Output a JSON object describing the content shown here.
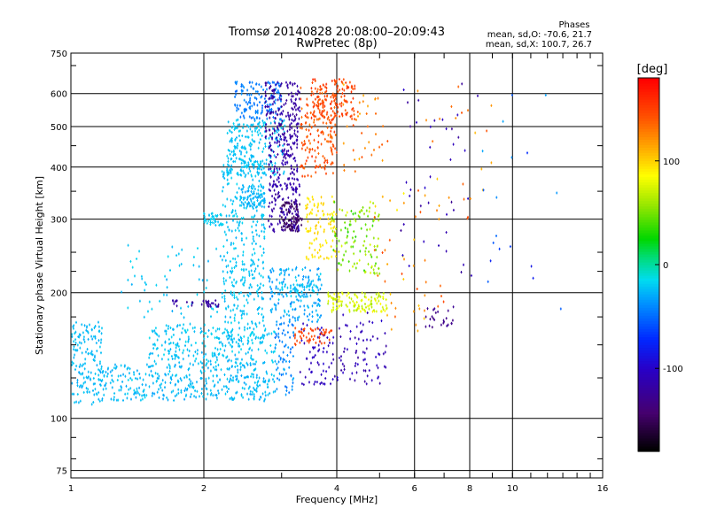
{
  "title": {
    "line1": "Tromsø 20140828 20:08:00–20:09:43",
    "line2": "RwPretec (8p)"
  },
  "stats": {
    "heading": "Phases",
    "o_mode": "mean, sd,O: -70.6, 21.7",
    "x_mode": "mean, sd,X: 100.7, 26.7"
  },
  "colorbar": {
    "label": "[deg]",
    "ticks": [
      "100",
      "0",
      "-100"
    ],
    "tick_values": [
      100,
      0,
      -100
    ],
    "range": [
      -180,
      180
    ]
  },
  "chart_data": {
    "type": "scatter",
    "x_scale": "log",
    "y_scale": "log",
    "xlabel": "Frequency [MHz]",
    "ylabel": "Stationary phase Virtual Height [km]",
    "xlim": [
      1,
      16
    ],
    "ylim": [
      72,
      750
    ],
    "x_ticks": [
      "1",
      "2",
      "4",
      "6",
      "8",
      "10",
      "16"
    ],
    "x_tick_values": [
      1,
      2,
      4,
      6,
      8,
      10,
      16
    ],
    "y_ticks": [
      "75",
      "100",
      "200",
      "300",
      "400",
      "500",
      "600",
      "750"
    ],
    "y_tick_values": [
      75,
      100,
      200,
      300,
      400,
      500,
      600,
      750
    ],
    "grid": true,
    "color_dimension": "phase (deg)",
    "clusters": [
      {
        "f": [
          1.0,
          1.18
        ],
        "h": [
          108,
          170
        ],
        "phase": -25,
        "n": 150,
        "spread": 8
      },
      {
        "f": [
          1.15,
          2.9
        ],
        "h": [
          110,
          135
        ],
        "phase": -25,
        "n": 380,
        "spread": 10
      },
      {
        "f": [
          1.5,
          2.9
        ],
        "h": [
          135,
          165
        ],
        "phase": -22,
        "n": 230,
        "spread": 10
      },
      {
        "f": [
          1.3,
          2.2
        ],
        "h": [
          160,
          260
        ],
        "phase": -22,
        "n": 70,
        "spread": 10
      },
      {
        "f": [
          1.7,
          2.2
        ],
        "h": [
          185,
          192
        ],
        "phase": -118,
        "n": 30,
        "spread": 8
      },
      {
        "f": [
          2.0,
          2.2
        ],
        "h": [
          290,
          310
        ],
        "phase": -20,
        "n": 40,
        "spread": 6
      },
      {
        "f": [
          2.2,
          2.75
        ],
        "h": [
          150,
          420
        ],
        "phase": -22,
        "n": 380,
        "spread": 8
      },
      {
        "f": [
          2.25,
          3.05
        ],
        "h": [
          380,
          520
        ],
        "phase": -22,
        "n": 230,
        "spread": 8
      },
      {
        "f": [
          2.35,
          3.0
        ],
        "h": [
          520,
          640
        ],
        "phase": -45,
        "n": 140,
        "spread": 10
      },
      {
        "f": [
          2.4,
          2.75
        ],
        "h": [
          320,
          360
        ],
        "phase": -28,
        "n": 70,
        "spread": 6
      },
      {
        "f": [
          2.75,
          3.3
        ],
        "h": [
          470,
          640
        ],
        "phase": -118,
        "n": 160,
        "spread": 12
      },
      {
        "f": [
          2.8,
          3.3
        ],
        "h": [
          280,
          470
        ],
        "phase": -115,
        "n": 240,
        "spread": 14
      },
      {
        "f": [
          3.0,
          3.35
        ],
        "h": [
          280,
          330
        ],
        "phase": -150,
        "n": 80,
        "spread": 10
      },
      {
        "f": [
          2.8,
          3.7
        ],
        "h": [
          170,
          230
        ],
        "phase": -30,
        "n": 170,
        "spread": 15
      },
      {
        "f": [
          2.9,
          3.2
        ],
        "h": [
          110,
          170
        ],
        "phase": -40,
        "n": 70,
        "spread": 15
      },
      {
        "f": [
          3.3,
          3.9
        ],
        "h": [
          120,
          170
        ],
        "phase": -105,
        "n": 60,
        "spread": 12
      },
      {
        "f": [
          3.3,
          4.0
        ],
        "h": [
          380,
          620
        ],
        "phase": 145,
        "n": 170,
        "spread": 18
      },
      {
        "f": [
          3.5,
          4.4
        ],
        "h": [
          520,
          650
        ],
        "phase": 150,
        "n": 130,
        "spread": 14
      },
      {
        "f": [
          3.4,
          4.0
        ],
        "h": [
          240,
          340
        ],
        "phase": 95,
        "n": 100,
        "spread": 12
      },
      {
        "f": [
          3.2,
          3.9
        ],
        "h": [
          150,
          165
        ],
        "phase": 150,
        "n": 50,
        "spread": 8
      },
      {
        "f": [
          3.0,
          3.6
        ],
        "h": [
          195,
          210
        ],
        "phase": -20,
        "n": 40,
        "spread": 8
      },
      {
        "f": [
          3.8,
          5.2
        ],
        "h": [
          180,
          200
        ],
        "phase": 75,
        "n": 120,
        "spread": 18
      },
      {
        "f": [
          3.9,
          5.0
        ],
        "h": [
          220,
          330
        ],
        "phase": 55,
        "n": 120,
        "spread": 30
      },
      {
        "f": [
          3.9,
          5.2
        ],
        "h": [
          120,
          180
        ],
        "phase": -110,
        "n": 80,
        "spread": 15
      },
      {
        "f": [
          4.1,
          5.3
        ],
        "h": [
          380,
          640
        ],
        "phase": 130,
        "n": 40,
        "spread": 35
      },
      {
        "f": [
          4.8,
          7.0
        ],
        "h": [
          160,
          350
        ],
        "phase": 120,
        "n": 45,
        "spread": 40
      },
      {
        "f": [
          5.5,
          8.5
        ],
        "h": [
          200,
          640
        ],
        "phase": -110,
        "n": 40,
        "spread": 20
      },
      {
        "f": [
          6.0,
          9.0
        ],
        "h": [
          300,
          640
        ],
        "phase": 130,
        "n": 25,
        "spread": 30
      },
      {
        "f": [
          6.2,
          7.4
        ],
        "h": [
          165,
          185
        ],
        "phase": -130,
        "n": 25,
        "spread": 8
      },
      {
        "f": [
          8.5,
          13.0
        ],
        "h": [
          150,
          620
        ],
        "phase": -60,
        "n": 18,
        "spread": 60
      }
    ]
  }
}
